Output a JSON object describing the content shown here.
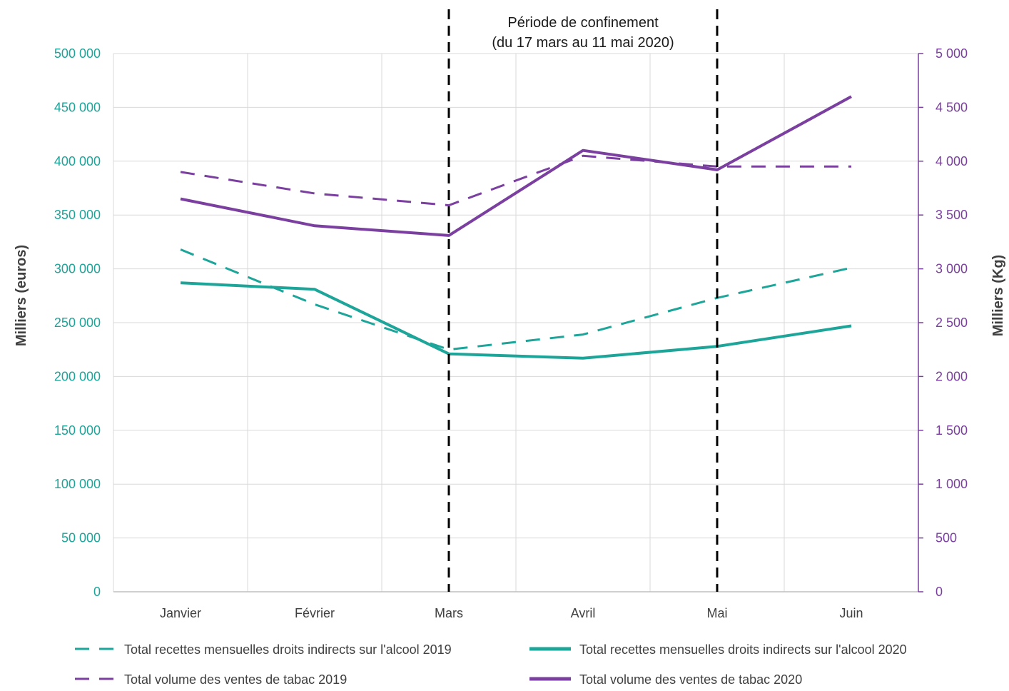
{
  "chart_data": {
    "type": "line",
    "categories": [
      "Janvier",
      "Février",
      "Mars",
      "Avril",
      "Mai",
      "Juin"
    ],
    "annotation": {
      "lines": [
        "Période de confinement",
        "(du 17 mars au 11 mai 2020)"
      ],
      "start_category": "Mars",
      "end_category": "Mai"
    },
    "left_axis": {
      "label": "Milliers (euros)",
      "ylim": [
        0,
        500000
      ],
      "ticks": [
        0,
        50000,
        100000,
        150000,
        200000,
        250000,
        300000,
        350000,
        400000,
        450000,
        500000
      ],
      "tick_labels": [
        "0",
        "50 000",
        "100 000",
        "150 000",
        "200 000",
        "250 000",
        "300 000",
        "350 000",
        "400 000",
        "450 000",
        "500 000"
      ],
      "color": "#1ea59a"
    },
    "right_axis": {
      "label": "Milliers (Kg)",
      "ylim": [
        0,
        5000
      ],
      "ticks": [
        0,
        500,
        1000,
        1500,
        2000,
        2500,
        3000,
        3500,
        4000,
        4500,
        5000
      ],
      "tick_labels": [
        "0",
        "500",
        "1 000",
        "1 500",
        "2 000",
        "2 500",
        "3 000",
        "3 500",
        "4 000",
        "4 500",
        "5 000"
      ],
      "color": "#7b3fa0"
    },
    "grid": true,
    "legend_position": "bottom",
    "series": [
      {
        "name": "Total recettes mensuelles droits indirects sur l'alcool 2019",
        "axis": "left",
        "style": "dashed",
        "color": "#1ea59a",
        "values": [
          318000,
          267000,
          225000,
          239000,
          273000,
          301000
        ]
      },
      {
        "name": "Total recettes mensuelles droits indirects sur l'alcool 2020",
        "axis": "left",
        "style": "solid",
        "color": "#1ea59a",
        "values": [
          287000,
          281000,
          221000,
          217000,
          228000,
          247000
        ]
      },
      {
        "name": "Total volume des ventes de tabac 2019",
        "axis": "right",
        "style": "dashed",
        "color": "#7b3fa0",
        "values": [
          3900,
          3700,
          3590,
          4050,
          3950,
          3950
        ]
      },
      {
        "name": "Total volume des ventes de tabac 2020",
        "axis": "right",
        "style": "solid",
        "color": "#7b3fa0",
        "values": [
          3650,
          3400,
          3310,
          4100,
          3920,
          4600
        ]
      }
    ]
  }
}
